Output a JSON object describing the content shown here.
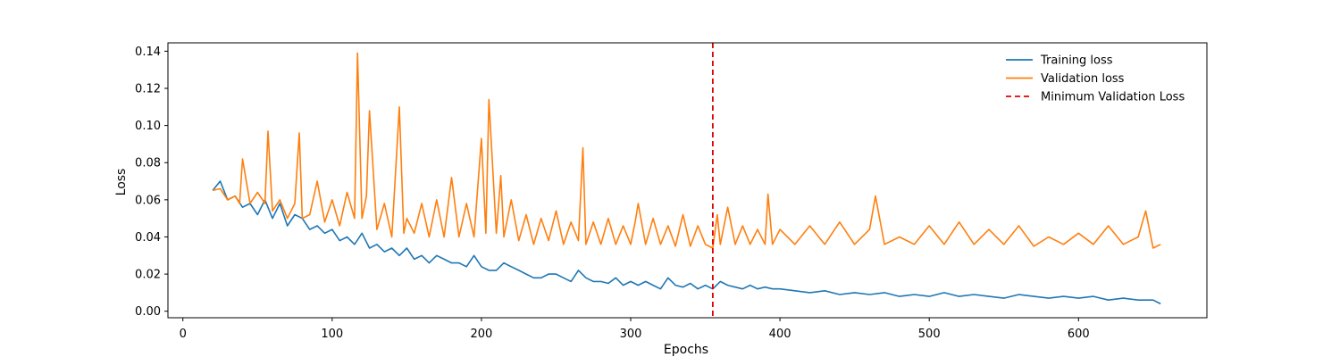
{
  "chart_data": {
    "type": "line",
    "xlabel": "Epochs",
    "ylabel": "Loss",
    "xlim": [
      -10,
      686
    ],
    "ylim": [
      -0.0035,
      0.1445
    ],
    "xticks": [
      0,
      100,
      200,
      300,
      400,
      500,
      600
    ],
    "yticks": [
      0.0,
      0.02,
      0.04,
      0.06,
      0.08,
      0.1,
      0.12,
      0.14
    ],
    "ytick_labels": [
      "0.00",
      "0.02",
      "0.04",
      "0.06",
      "0.08",
      "0.10",
      "0.12",
      "0.14"
    ],
    "grid": false,
    "legend_position": "top-right",
    "series": [
      {
        "name": "Training loss",
        "color": "#1f77b4",
        "x": [
          20,
          25,
          30,
          35,
          40,
          45,
          50,
          55,
          60,
          65,
          70,
          75,
          80,
          85,
          90,
          95,
          100,
          105,
          110,
          115,
          120,
          125,
          130,
          135,
          140,
          145,
          150,
          155,
          160,
          165,
          170,
          175,
          180,
          185,
          190,
          195,
          200,
          205,
          210,
          215,
          220,
          225,
          230,
          235,
          240,
          245,
          250,
          255,
          260,
          265,
          270,
          275,
          280,
          285,
          290,
          295,
          300,
          305,
          310,
          315,
          320,
          325,
          330,
          335,
          340,
          345,
          350,
          355,
          360,
          365,
          370,
          375,
          380,
          385,
          390,
          395,
          400,
          410,
          420,
          430,
          440,
          450,
          460,
          470,
          480,
          490,
          500,
          510,
          520,
          530,
          540,
          550,
          560,
          570,
          580,
          590,
          600,
          610,
          620,
          630,
          640,
          650,
          655
        ],
        "y": [
          0.065,
          0.07,
          0.06,
          0.062,
          0.056,
          0.058,
          0.052,
          0.06,
          0.05,
          0.058,
          0.046,
          0.052,
          0.05,
          0.044,
          0.046,
          0.042,
          0.044,
          0.038,
          0.04,
          0.036,
          0.042,
          0.034,
          0.036,
          0.032,
          0.034,
          0.03,
          0.034,
          0.028,
          0.03,
          0.026,
          0.03,
          0.028,
          0.026,
          0.026,
          0.024,
          0.03,
          0.024,
          0.022,
          0.022,
          0.026,
          0.024,
          0.022,
          0.02,
          0.018,
          0.018,
          0.02,
          0.02,
          0.018,
          0.016,
          0.022,
          0.018,
          0.016,
          0.016,
          0.015,
          0.018,
          0.014,
          0.016,
          0.014,
          0.016,
          0.014,
          0.012,
          0.018,
          0.014,
          0.013,
          0.015,
          0.012,
          0.014,
          0.012,
          0.016,
          0.014,
          0.013,
          0.012,
          0.014,
          0.012,
          0.013,
          0.012,
          0.012,
          0.011,
          0.01,
          0.011,
          0.009,
          0.01,
          0.009,
          0.01,
          0.008,
          0.009,
          0.008,
          0.01,
          0.008,
          0.009,
          0.008,
          0.007,
          0.009,
          0.008,
          0.007,
          0.008,
          0.007,
          0.008,
          0.006,
          0.007,
          0.006,
          0.006,
          0.004
        ]
      },
      {
        "name": "Validation loss",
        "color": "#ff7f0e",
        "x": [
          20,
          25,
          30,
          35,
          38,
          40,
          45,
          50,
          55,
          57,
          60,
          65,
          70,
          75,
          78,
          80,
          85,
          90,
          95,
          100,
          105,
          110,
          115,
          117,
          120,
          123,
          125,
          130,
          135,
          140,
          145,
          148,
          150,
          155,
          160,
          165,
          170,
          175,
          180,
          185,
          190,
          195,
          200,
          203,
          205,
          210,
          213,
          215,
          220,
          225,
          230,
          235,
          240,
          245,
          250,
          255,
          260,
          265,
          268,
          270,
          275,
          280,
          285,
          290,
          295,
          300,
          303,
          305,
          310,
          315,
          320,
          325,
          330,
          335,
          340,
          345,
          350,
          355,
          358,
          360,
          365,
          370,
          375,
          380,
          385,
          390,
          392,
          395,
          400,
          410,
          420,
          430,
          440,
          450,
          460,
          464,
          470,
          480,
          490,
          500,
          510,
          520,
          530,
          540,
          550,
          560,
          570,
          580,
          590,
          600,
          610,
          620,
          630,
          640,
          645,
          650,
          655
        ],
        "y": [
          0.065,
          0.066,
          0.06,
          0.062,
          0.058,
          0.082,
          0.058,
          0.064,
          0.058,
          0.097,
          0.054,
          0.06,
          0.05,
          0.058,
          0.096,
          0.05,
          0.052,
          0.07,
          0.048,
          0.06,
          0.046,
          0.064,
          0.05,
          0.139,
          0.05,
          0.062,
          0.108,
          0.044,
          0.058,
          0.04,
          0.11,
          0.042,
          0.05,
          0.042,
          0.058,
          0.04,
          0.06,
          0.04,
          0.072,
          0.04,
          0.058,
          0.04,
          0.093,
          0.042,
          0.114,
          0.042,
          0.073,
          0.04,
          0.06,
          0.038,
          0.052,
          0.036,
          0.05,
          0.038,
          0.054,
          0.036,
          0.048,
          0.038,
          0.088,
          0.036,
          0.048,
          0.036,
          0.05,
          0.036,
          0.046,
          0.036,
          0.048,
          0.058,
          0.036,
          0.05,
          0.036,
          0.046,
          0.035,
          0.052,
          0.035,
          0.046,
          0.036,
          0.034,
          0.052,
          0.036,
          0.056,
          0.036,
          0.046,
          0.036,
          0.044,
          0.036,
          0.063,
          0.036,
          0.044,
          0.036,
          0.046,
          0.036,
          0.048,
          0.036,
          0.044,
          0.062,
          0.036,
          0.04,
          0.036,
          0.046,
          0.036,
          0.048,
          0.036,
          0.044,
          0.036,
          0.046,
          0.035,
          0.04,
          0.036,
          0.042,
          0.036,
          0.046,
          0.036,
          0.04,
          0.054,
          0.034,
          0.036
        ]
      }
    ],
    "reference_lines": [
      {
        "name": "Minimum Validation Loss",
        "orientation": "vertical",
        "x": 355,
        "color": "#e00000",
        "style": "dashed"
      }
    ]
  }
}
